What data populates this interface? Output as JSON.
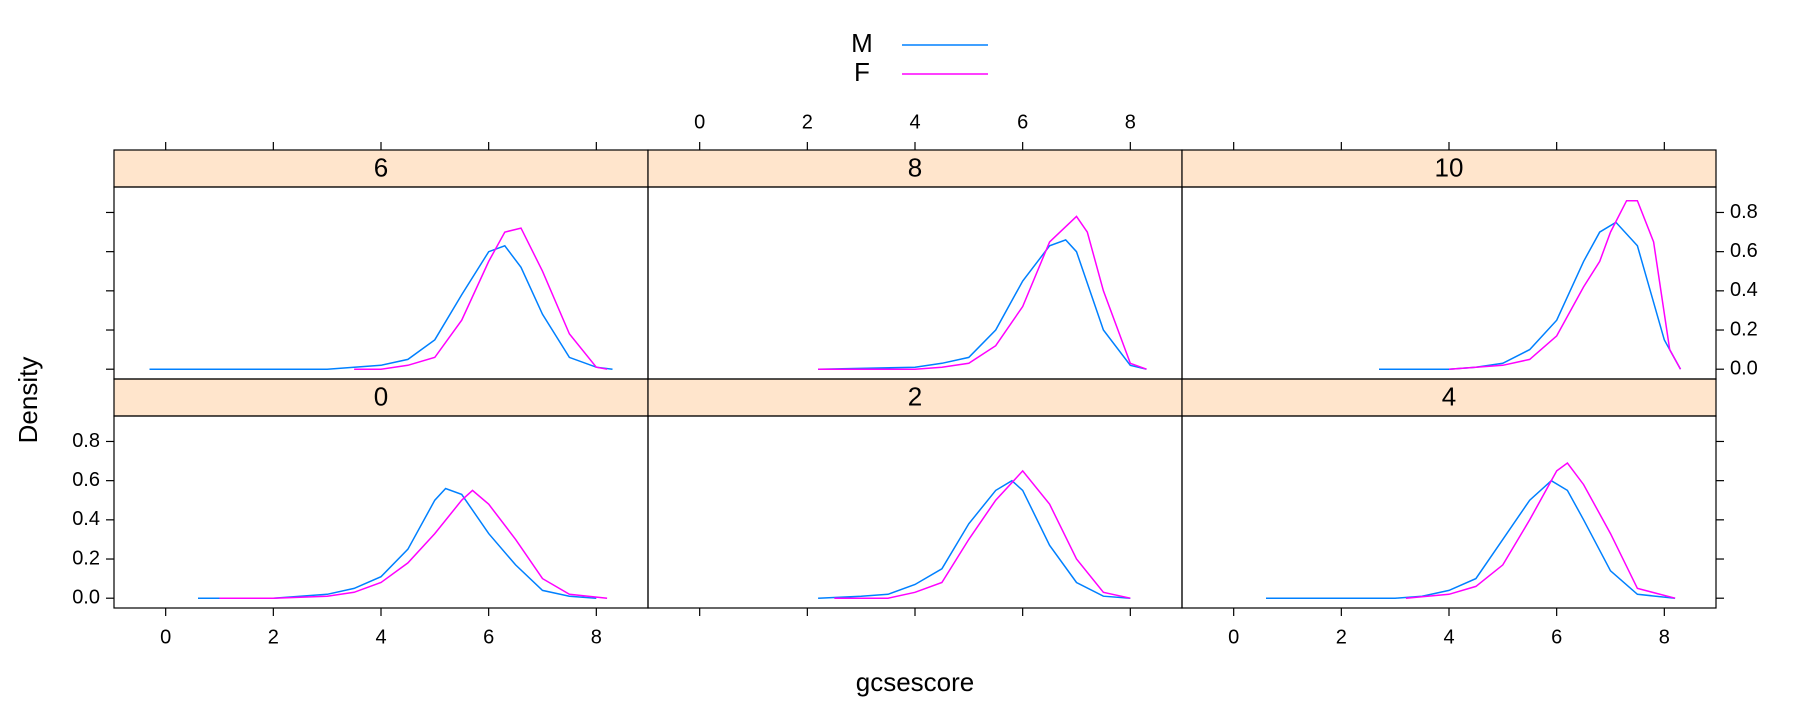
{
  "chart_data": {
    "type": "line",
    "xlabel": "gcsescore",
    "ylabel": "Density",
    "xlim": [
      -0.96,
      8.96
    ],
    "xticks": [
      0,
      2,
      4,
      6,
      8
    ],
    "ylim": [
      -0.05,
      0.93
    ],
    "yticks": [
      0.0,
      0.2,
      0.4,
      0.6,
      0.8
    ],
    "ytick_labels": [
      "0.0",
      "0.2",
      "0.4",
      "0.6",
      "0.8"
    ],
    "strip_color": "#ffe5cc",
    "legend": [
      {
        "name": "M",
        "color": "#0080ff"
      },
      {
        "name": "F",
        "color": "#ff00ff"
      }
    ],
    "panels": [
      {
        "title": "0",
        "series": [
          {
            "x": [
              0.6,
              1,
              2,
              3,
              3.5,
              4,
              4.5,
              5,
              5.2,
              5.5,
              6,
              6.5,
              7,
              7.5,
              8
            ],
            "values": [
              0,
              0,
              0,
              0.02,
              0.05,
              0.11,
              0.25,
              0.5,
              0.56,
              0.53,
              0.33,
              0.17,
              0.04,
              0.01,
              0
            ]
          },
          {
            "x": [
              1,
              2,
              3,
              3.5,
              4,
              4.5,
              5,
              5.5,
              5.7,
              6,
              6.5,
              7,
              7.5,
              8.2
            ],
            "values": [
              0,
              0,
              0.01,
              0.03,
              0.08,
              0.18,
              0.33,
              0.5,
              0.55,
              0.48,
              0.3,
              0.1,
              0.02,
              0
            ]
          }
        ]
      },
      {
        "title": "2",
        "series": [
          {
            "x": [
              2.2,
              3,
              3.5,
              4,
              4.5,
              5,
              5.5,
              5.8,
              6,
              6.5,
              7,
              7.5,
              8
            ],
            "values": [
              0,
              0.01,
              0.02,
              0.07,
              0.15,
              0.38,
              0.55,
              0.6,
              0.55,
              0.27,
              0.08,
              0.01,
              0
            ]
          },
          {
            "x": [
              2.5,
              3,
              3.5,
              4,
              4.5,
              5,
              5.5,
              6,
              6.5,
              7,
              7.5,
              8
            ],
            "values": [
              0,
              0,
              0,
              0.03,
              0.08,
              0.3,
              0.5,
              0.65,
              0.48,
              0.2,
              0.03,
              0
            ]
          }
        ]
      },
      {
        "title": "4",
        "series": [
          {
            "x": [
              0.6,
              2,
              3,
              3.5,
              4,
              4.5,
              5,
              5.5,
              5.9,
              6.2,
              6.5,
              7,
              7.5,
              8.2
            ],
            "values": [
              0,
              0,
              0,
              0.01,
              0.04,
              0.1,
              0.3,
              0.5,
              0.6,
              0.55,
              0.4,
              0.14,
              0.02,
              0
            ]
          },
          {
            "x": [
              3.2,
              4,
              4.5,
              5,
              5.5,
              6,
              6.2,
              6.5,
              7,
              7.5,
              8.2
            ],
            "values": [
              0,
              0.02,
              0.06,
              0.17,
              0.4,
              0.65,
              0.69,
              0.58,
              0.33,
              0.05,
              0
            ]
          }
        ]
      },
      {
        "title": "6",
        "series": [
          {
            "x": [
              -0.3,
              2,
              3,
              3.5,
              4,
              4.5,
              5,
              5.5,
              6,
              6.3,
              6.6,
              7,
              7.5,
              8,
              8.3
            ],
            "values": [
              0,
              0,
              0,
              0.01,
              0.02,
              0.05,
              0.15,
              0.38,
              0.6,
              0.63,
              0.52,
              0.28,
              0.06,
              0.01,
              0
            ]
          },
          {
            "x": [
              3.5,
              4,
              4.5,
              5,
              5.5,
              6,
              6.3,
              6.6,
              7,
              7.5,
              8,
              8.2
            ],
            "values": [
              0,
              0,
              0.02,
              0.06,
              0.25,
              0.55,
              0.7,
              0.72,
              0.5,
              0.18,
              0.01,
              0
            ]
          }
        ]
      },
      {
        "title": "8",
        "series": [
          {
            "x": [
              2.2,
              4,
              4.5,
              5,
              5.5,
              6,
              6.5,
              6.8,
              7,
              7.5,
              8,
              8.3
            ],
            "values": [
              0,
              0.01,
              0.03,
              0.06,
              0.2,
              0.45,
              0.63,
              0.66,
              0.6,
              0.2,
              0.02,
              0
            ]
          },
          {
            "x": [
              2.2,
              4,
              4.5,
              5,
              5.5,
              6,
              6.5,
              7,
              7.2,
              7.5,
              8,
              8.3
            ],
            "values": [
              0,
              0,
              0.01,
              0.03,
              0.12,
              0.32,
              0.65,
              0.78,
              0.7,
              0.4,
              0.03,
              0
            ]
          }
        ]
      },
      {
        "title": "10",
        "series": [
          {
            "x": [
              2.7,
              4,
              4.5,
              5,
              5.5,
              6,
              6.5,
              6.8,
              7.1,
              7.5,
              8,
              8.3
            ],
            "values": [
              0,
              0,
              0.01,
              0.03,
              0.1,
              0.25,
              0.55,
              0.7,
              0.75,
              0.63,
              0.15,
              0
            ]
          },
          {
            "x": [
              4,
              4.5,
              5,
              5.5,
              6,
              6.5,
              6.8,
              7,
              7.3,
              7.5,
              7.8,
              8.1,
              8.3
            ],
            "values": [
              0,
              0.01,
              0.02,
              0.05,
              0.17,
              0.42,
              0.55,
              0.7,
              0.86,
              0.86,
              0.65,
              0.1,
              0
            ]
          }
        ]
      }
    ]
  }
}
